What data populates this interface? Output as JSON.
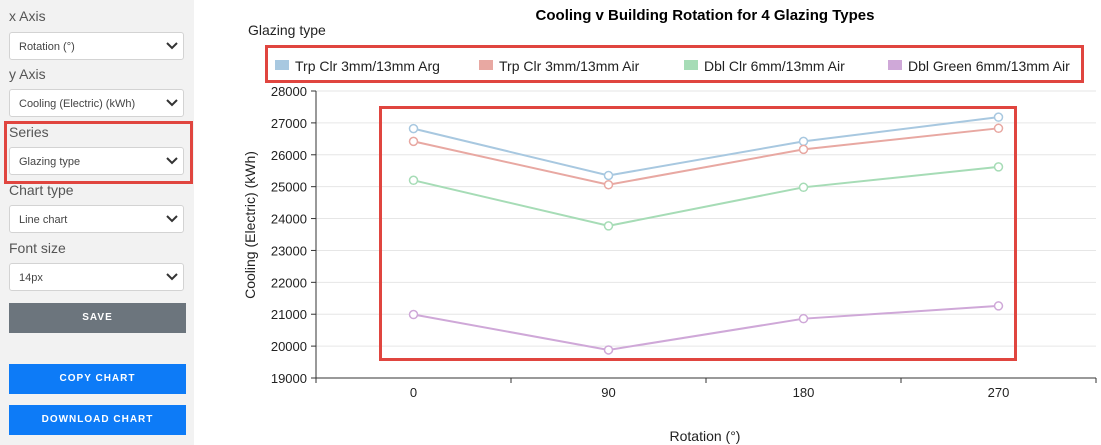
{
  "sidebar": {
    "x_axis": {
      "label": "x Axis",
      "value": "Rotation (°)"
    },
    "y_axis": {
      "label": "y Axis",
      "value": "Cooling (Electric) (kWh)"
    },
    "series": {
      "label": "Series",
      "value": "Glazing type"
    },
    "chart_type": {
      "label": "Chart type",
      "value": "Line chart"
    },
    "font_size": {
      "label": "Font size",
      "value": "14px"
    },
    "save_label": "SAVE",
    "copy_label": "COPY CHART",
    "download_label": "DOWNLOAD CHART"
  },
  "colors": {
    "highlight": "#e0453f",
    "button_gray": "#6c757d",
    "button_blue": "#0d7bf7"
  },
  "chart_data": {
    "type": "line",
    "title": "Cooling v Building Rotation for 4 Glazing Types",
    "legend_title": "Glazing type",
    "legend_position": "top",
    "xlabel": "Rotation (°)",
    "ylabel": "Cooling (Electric) (kWh)",
    "categories": [
      "0",
      "90",
      "180",
      "270"
    ],
    "ylim": [
      19000,
      28000
    ],
    "yticks": [
      19000,
      20000,
      21000,
      22000,
      23000,
      24000,
      25000,
      26000,
      27000,
      28000
    ],
    "grid": true,
    "series": [
      {
        "name": "Trp Clr 3mm/13mm Arg",
        "color": "#a8c8e0",
        "values": [
          26820,
          25350,
          26420,
          27180
        ]
      },
      {
        "name": "Trp Clr 3mm/13mm Air",
        "color": "#e8a8a2",
        "values": [
          26420,
          25060,
          26170,
          26830
        ]
      },
      {
        "name": "Dbl Clr 6mm/13mm Air",
        "color": "#a6dcb6",
        "values": [
          25200,
          23770,
          24980,
          25620
        ]
      },
      {
        "name": "Dbl Green 6mm/13mm Air",
        "color": "#cfa8d8",
        "values": [
          20990,
          19880,
          20860,
          21260
        ]
      }
    ]
  }
}
